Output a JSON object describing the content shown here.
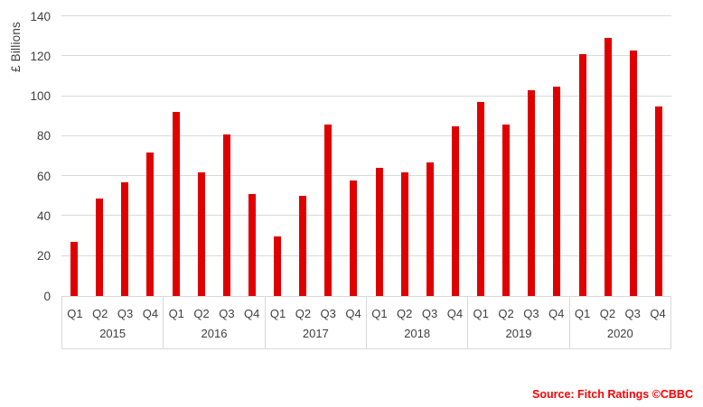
{
  "chart_data": {
    "type": "bar",
    "title": "",
    "xlabel": "",
    "ylabel": "£ Billions",
    "ylim": [
      0,
      140
    ],
    "yticks": [
      0,
      20,
      40,
      60,
      80,
      100,
      120,
      140
    ],
    "grid": true,
    "legend": false,
    "bar_color": "#e00000",
    "gridline_color": "#d9d9d9",
    "axis_text_color": "#404040",
    "quarter_labels": [
      "Q1",
      "Q2",
      "Q3",
      "Q4"
    ],
    "series": [
      {
        "year": "2015",
        "values": [
          27,
          49,
          57,
          72
        ]
      },
      {
        "year": "2016",
        "values": [
          92,
          62,
          81,
          51
        ]
      },
      {
        "year": "2017",
        "values": [
          30,
          50,
          86,
          58
        ]
      },
      {
        "year": "2018",
        "values": [
          64,
          62,
          67,
          85
        ]
      },
      {
        "year": "2019",
        "values": [
          97,
          86,
          103,
          105
        ]
      },
      {
        "year": "2020",
        "values": [
          121,
          129,
          123,
          95
        ]
      }
    ]
  },
  "source": {
    "label": "Source: Fitch Ratings ©CBBC",
    "color": "#ff0000"
  }
}
